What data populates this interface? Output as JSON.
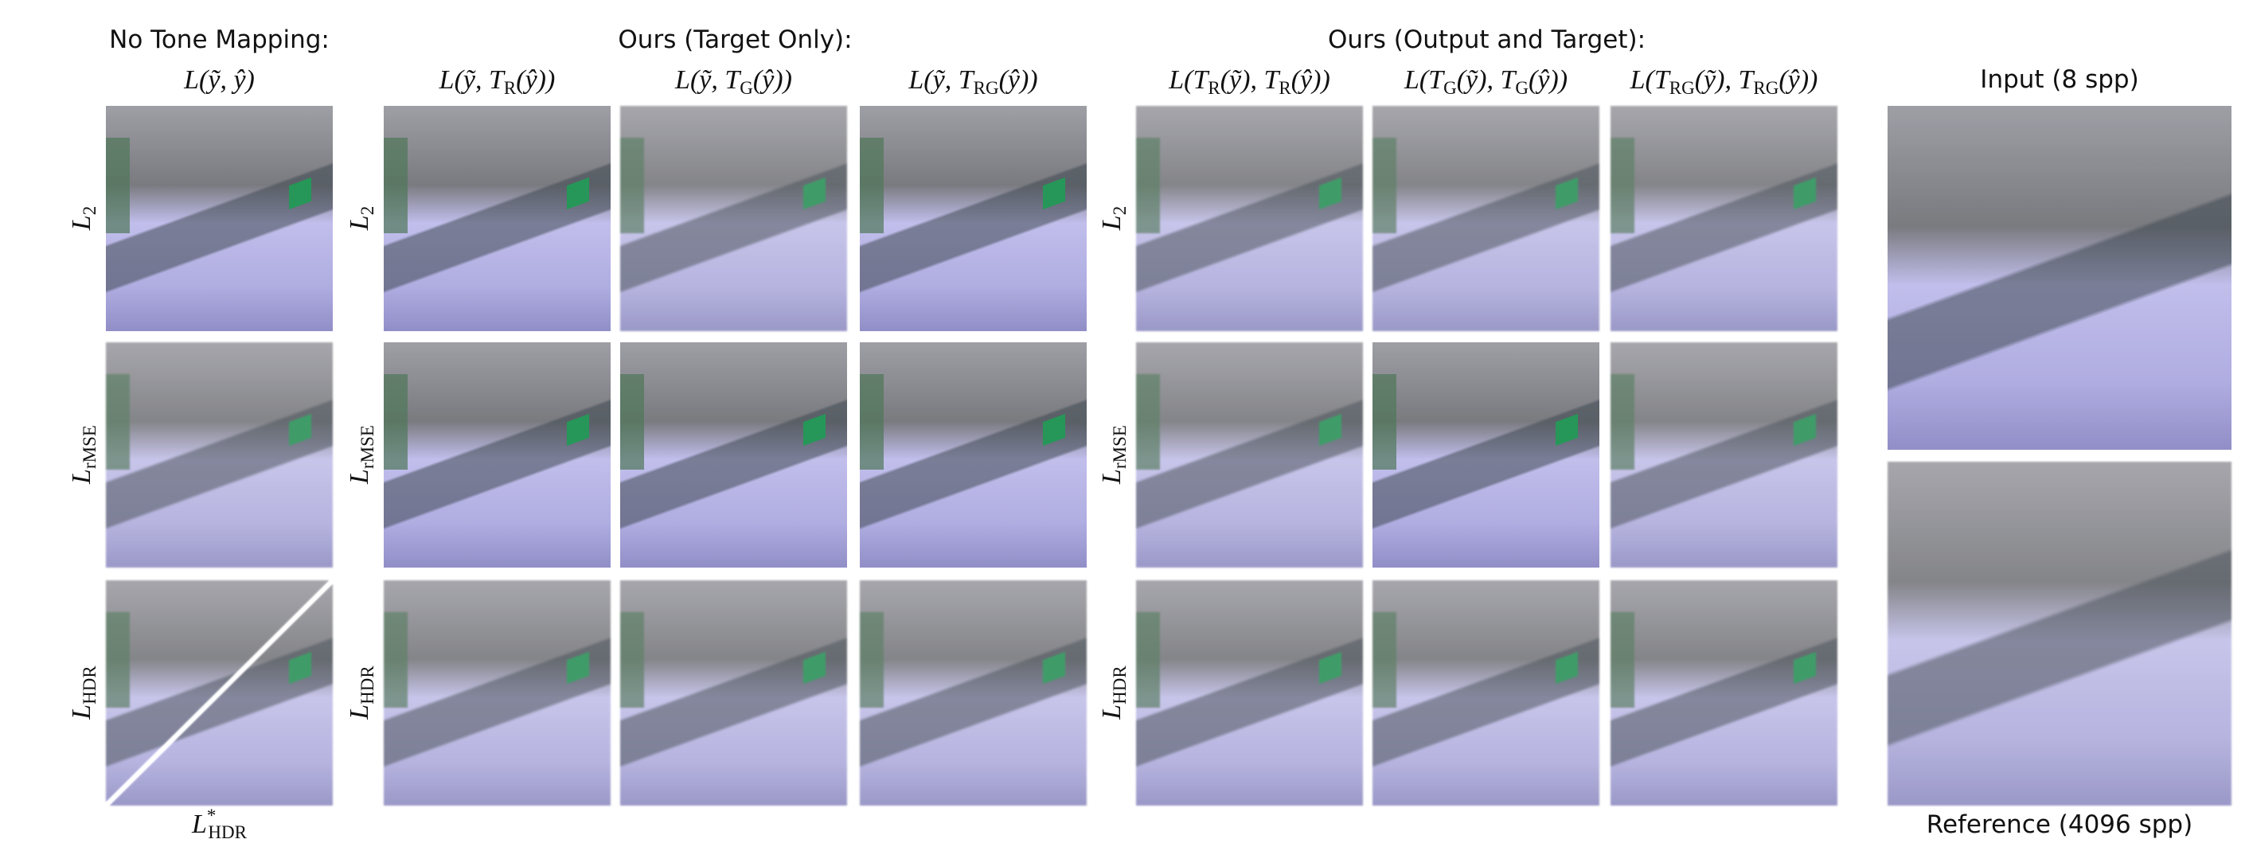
{
  "groups": [
    {
      "header": "No Tone Mapping:",
      "columns": [
        [
          {
            "text": "L(ỹ, ŷ)"
          }
        ]
      ],
      "bottom_label": [
        {
          "text": "L"
        },
        {
          "sup": "*"
        },
        {
          "sub": "HDR"
        }
      ]
    },
    {
      "header": "Ours (Target Only):",
      "columns": [
        [
          {
            "text": "L(ỹ, T"
          },
          {
            "sub": "R"
          },
          {
            "text": "(ŷ))"
          }
        ],
        [
          {
            "text": "L(ỹ, T"
          },
          {
            "sub": "G"
          },
          {
            "text": "(ŷ))"
          }
        ],
        [
          {
            "text": "L(ỹ, T"
          },
          {
            "sub": "RG"
          },
          {
            "text": "(ŷ))"
          }
        ]
      ]
    },
    {
      "header": "Ours (Output and Target):",
      "columns": [
        [
          {
            "text": "L(T"
          },
          {
            "sub": "R"
          },
          {
            "text": "(ỹ), T"
          },
          {
            "sub": "R"
          },
          {
            "text": "(ŷ))"
          }
        ],
        [
          {
            "text": "L(T"
          },
          {
            "sub": "G"
          },
          {
            "text": "(ỹ), T"
          },
          {
            "sub": "G"
          },
          {
            "text": "(ŷ))"
          }
        ],
        [
          {
            "text": "L(T"
          },
          {
            "sub": "RG"
          },
          {
            "text": "(ỹ), T"
          },
          {
            "sub": "RG"
          },
          {
            "text": "(ŷ))"
          }
        ]
      ]
    }
  ],
  "row_labels": [
    [
      {
        "text": "L"
      },
      {
        "sub": "2"
      }
    ],
    [
      {
        "text": "L"
      },
      {
        "sub": "rMSE"
      }
    ],
    [
      {
        "text": "L"
      },
      {
        "sub": "HDR"
      }
    ]
  ],
  "side": {
    "top_label": "Input (8 spp)",
    "bottom_label": "Reference (4096 spp)"
  }
}
